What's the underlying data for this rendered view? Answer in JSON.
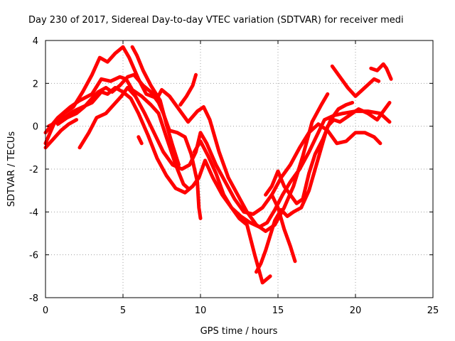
{
  "chart_data": {
    "type": "scatter",
    "title": "Day 230 of 2017, Sidereal Day-to-day VTEC variation (SDTVAR) for receiver medi",
    "xlabel": "GPS time / hours",
    "ylabel": "SDTVAR / TECUs",
    "xlim": [
      0,
      25
    ],
    "ylim": [
      -8,
      4
    ],
    "xticks": [
      "0",
      "5",
      "10",
      "15",
      "20",
      "25"
    ],
    "yticks": [
      "-8",
      "-6",
      "-4",
      "-2",
      "0",
      "2",
      "4"
    ],
    "grid": true,
    "legend": "none",
    "marker": "+",
    "color": "#ff0000",
    "series": [
      {
        "points": [
          [
            0.0,
            -0.8
          ],
          [
            0.6,
            0.2
          ],
          [
            1.2,
            0.6
          ],
          [
            1.8,
            0.9
          ],
          [
            2.4,
            1.6
          ],
          [
            3.0,
            2.4
          ],
          [
            3.5,
            3.2
          ],
          [
            4.0,
            3.0
          ],
          [
            4.5,
            3.4
          ],
          [
            5.0,
            3.7
          ],
          [
            5.4,
            3.2
          ],
          [
            6.0,
            2.2
          ],
          [
            6.5,
            1.5
          ],
          [
            7.2,
            1.3
          ],
          [
            7.5,
            1.7
          ],
          [
            8.0,
            1.4
          ],
          [
            8.6,
            0.8
          ],
          [
            9.2,
            0.2
          ],
          [
            9.8,
            0.7
          ],
          [
            10.2,
            0.9
          ],
          [
            10.6,
            0.3
          ],
          [
            11.2,
            -1.2
          ],
          [
            11.8,
            -2.4
          ],
          [
            12.4,
            -3.2
          ],
          [
            13.0,
            -4.0
          ],
          [
            13.6,
            -4.6
          ],
          [
            14.2,
            -4.9
          ],
          [
            14.8,
            -4.6
          ],
          [
            15.4,
            -3.8
          ],
          [
            16.0,
            -2.8
          ],
          [
            16.6,
            -1.4
          ],
          [
            17.2,
            0.2
          ],
          [
            17.8,
            1.0
          ],
          [
            18.2,
            1.5
          ]
        ]
      },
      {
        "points": [
          [
            0.0,
            -0.3
          ],
          [
            0.8,
            0.4
          ],
          [
            1.6,
            0.9
          ],
          [
            2.2,
            1.2
          ],
          [
            3.0,
            1.5
          ],
          [
            3.6,
            2.2
          ],
          [
            4.2,
            2.1
          ],
          [
            4.8,
            2.3
          ],
          [
            5.2,
            2.2
          ],
          [
            5.6,
            1.7
          ],
          [
            6.2,
            1.4
          ],
          [
            6.8,
            1.0
          ],
          [
            7.3,
            0.6
          ],
          [
            7.8,
            -0.5
          ],
          [
            8.4,
            -1.8
          ],
          [
            8.9,
            -2.7
          ],
          [
            9.2,
            -2.9
          ]
        ]
      },
      {
        "points": [
          [
            0.2,
            0.0
          ],
          [
            1.0,
            0.3
          ],
          [
            1.8,
            0.7
          ],
          [
            2.4,
            0.9
          ],
          [
            3.0,
            1.1
          ],
          [
            3.6,
            1.6
          ],
          [
            4.0,
            1.5
          ],
          [
            4.5,
            1.8
          ],
          [
            5.0,
            1.6
          ],
          [
            5.5,
            1.3
          ],
          [
            6.0,
            0.6
          ],
          [
            6.6,
            -0.4
          ],
          [
            7.2,
            -1.5
          ],
          [
            7.8,
            -2.3
          ],
          [
            8.4,
            -2.9
          ],
          [
            9.0,
            -3.1
          ],
          [
            9.5,
            -2.8
          ],
          [
            9.9,
            -2.4
          ],
          [
            10.3,
            -1.6
          ],
          [
            10.8,
            -2.4
          ],
          [
            11.4,
            -3.2
          ],
          [
            12.0,
            -3.8
          ],
          [
            12.6,
            -4.2
          ],
          [
            13.2,
            -4.5
          ],
          [
            13.8,
            -4.7
          ],
          [
            14.3,
            -4.5
          ],
          [
            14.8,
            -3.9
          ],
          [
            15.3,
            -3.2
          ],
          [
            15.8,
            -2.6
          ],
          [
            16.4,
            -2.0
          ],
          [
            17.0,
            -1.2
          ],
          [
            17.6,
            -0.3
          ],
          [
            18.0,
            0.3
          ],
          [
            18.6,
            0.5
          ],
          [
            19.2,
            0.6
          ],
          [
            20.0,
            0.7
          ],
          [
            20.8,
            0.7
          ],
          [
            21.6,
            0.6
          ],
          [
            22.2,
            0.2
          ]
        ]
      },
      {
        "points": [
          [
            2.2,
            -1.0
          ],
          [
            2.8,
            -0.3
          ],
          [
            3.3,
            0.4
          ],
          [
            3.9,
            0.6
          ],
          [
            4.4,
            1.0
          ],
          [
            4.9,
            1.4
          ],
          [
            5.3,
            1.8
          ],
          [
            5.8,
            1.4
          ],
          [
            6.4,
            0.6
          ],
          [
            7.0,
            -0.3
          ],
          [
            7.6,
            -1.2
          ],
          [
            8.2,
            -1.8
          ],
          [
            8.8,
            -2.0
          ],
          [
            9.3,
            -1.8
          ],
          [
            9.7,
            -1.2
          ],
          [
            10.0,
            -0.3
          ],
          [
            10.4,
            -0.8
          ],
          [
            11.0,
            -1.8
          ],
          [
            11.6,
            -2.6
          ],
          [
            12.2,
            -3.4
          ],
          [
            12.8,
            -4.0
          ],
          [
            13.4,
            -4.1
          ],
          [
            14.0,
            -3.8
          ],
          [
            14.6,
            -3.2
          ],
          [
            15.2,
            -2.4
          ],
          [
            15.8,
            -1.8
          ],
          [
            16.4,
            -1.0
          ],
          [
            17.0,
            -0.3
          ],
          [
            17.6,
            0.1
          ],
          [
            18.2,
            -0.2
          ],
          [
            18.8,
            -0.8
          ],
          [
            19.4,
            -0.7
          ],
          [
            20.0,
            -0.3
          ],
          [
            20.6,
            -0.3
          ],
          [
            21.2,
            -0.5
          ],
          [
            21.6,
            -0.8
          ]
        ]
      },
      {
        "points": [
          [
            9.6,
            -1.2
          ],
          [
            10.0,
            -0.7
          ],
          [
            10.5,
            -1.4
          ],
          [
            11.0,
            -2.2
          ],
          [
            11.5,
            -3.2
          ],
          [
            12.0,
            -3.8
          ],
          [
            12.5,
            -4.3
          ],
          [
            13.0,
            -4.6
          ],
          [
            13.5,
            -6.0
          ],
          [
            14.0,
            -7.3
          ],
          [
            14.5,
            -7.0
          ]
        ]
      },
      {
        "points": [
          [
            13.6,
            -6.8
          ],
          [
            13.9,
            -6.4
          ],
          [
            14.2,
            -5.8
          ],
          [
            14.5,
            -5.1
          ],
          [
            14.8,
            -4.4
          ],
          [
            15.2,
            -3.9
          ],
          [
            15.6,
            -4.2
          ],
          [
            16.0,
            -4.0
          ],
          [
            16.5,
            -3.8
          ],
          [
            17.0,
            -3.0
          ],
          [
            17.4,
            -2.0
          ],
          [
            17.8,
            -1.0
          ],
          [
            18.2,
            0.0
          ],
          [
            18.6,
            0.3
          ],
          [
            19.0,
            0.2
          ],
          [
            19.6,
            0.5
          ],
          [
            20.2,
            0.8
          ],
          [
            20.8,
            0.6
          ],
          [
            21.4,
            0.3
          ],
          [
            21.9,
            0.8
          ],
          [
            22.2,
            1.1
          ]
        ]
      },
      {
        "points": [
          [
            14.6,
            -3.2
          ],
          [
            15.0,
            -3.8
          ],
          [
            15.4,
            -4.8
          ],
          [
            15.8,
            -5.6
          ],
          [
            16.1,
            -6.3
          ]
        ]
      },
      {
        "points": [
          [
            14.2,
            -3.2
          ],
          [
            14.6,
            -2.8
          ],
          [
            15.0,
            -2.1
          ],
          [
            15.4,
            -2.8
          ],
          [
            15.8,
            -3.2
          ],
          [
            16.2,
            -3.6
          ],
          [
            16.6,
            -3.4
          ],
          [
            17.0,
            -2.2
          ],
          [
            17.4,
            -1.3
          ],
          [
            17.9,
            -0.6
          ],
          [
            18.4,
            0.3
          ],
          [
            18.9,
            0.8
          ],
          [
            19.4,
            1.0
          ],
          [
            19.8,
            1.1
          ]
        ]
      },
      {
        "points": [
          [
            18.5,
            2.8
          ],
          [
            19.0,
            2.3
          ],
          [
            19.5,
            1.8
          ],
          [
            20.0,
            1.4
          ],
          [
            20.6,
            1.8
          ],
          [
            21.2,
            2.2
          ],
          [
            21.5,
            2.1
          ]
        ]
      },
      {
        "points": [
          [
            21.0,
            2.7
          ],
          [
            21.4,
            2.6
          ],
          [
            21.8,
            2.9
          ],
          [
            22.0,
            2.7
          ],
          [
            22.3,
            2.2
          ]
        ]
      },
      {
        "points": [
          [
            0.8,
            0.1
          ],
          [
            1.4,
            0.4
          ],
          [
            2.0,
            0.6
          ],
          [
            2.5,
            0.9
          ],
          [
            3.0,
            1.3
          ],
          [
            3.4,
            1.6
          ],
          [
            3.9,
            1.8
          ],
          [
            4.3,
            1.6
          ],
          [
            4.8,
            1.9
          ],
          [
            5.3,
            2.3
          ],
          [
            5.7,
            2.4
          ],
          [
            6.3,
            1.9
          ],
          [
            6.8,
            1.6
          ],
          [
            7.3,
            1.1
          ],
          [
            7.6,
            0.6
          ],
          [
            8.0,
            -0.2
          ],
          [
            8.5,
            -0.3
          ],
          [
            9.0,
            -0.5
          ],
          [
            9.4,
            -1.3
          ],
          [
            9.8,
            -2.6
          ],
          [
            9.9,
            -3.8
          ],
          [
            10.0,
            -4.3
          ]
        ]
      },
      {
        "points": [
          [
            8.7,
            1.0
          ],
          [
            9.1,
            1.4
          ],
          [
            9.5,
            1.9
          ],
          [
            9.7,
            2.4
          ]
        ]
      },
      {
        "points": [
          [
            6.0,
            -0.5
          ],
          [
            6.2,
            -0.8
          ]
        ]
      },
      {
        "points": [
          [
            5.6,
            3.7
          ],
          [
            5.9,
            3.3
          ],
          [
            6.3,
            2.6
          ],
          [
            6.8,
            1.9
          ],
          [
            7.4,
            1.2
          ],
          [
            7.8,
            0.1
          ],
          [
            8.2,
            -0.9
          ],
          [
            8.6,
            -1.8
          ]
        ]
      },
      {
        "points": [
          [
            0.0,
            -1.0
          ],
          [
            0.5,
            -0.6
          ],
          [
            1.0,
            -0.2
          ],
          [
            1.5,
            0.1
          ],
          [
            2.0,
            0.3
          ]
        ]
      }
    ]
  }
}
